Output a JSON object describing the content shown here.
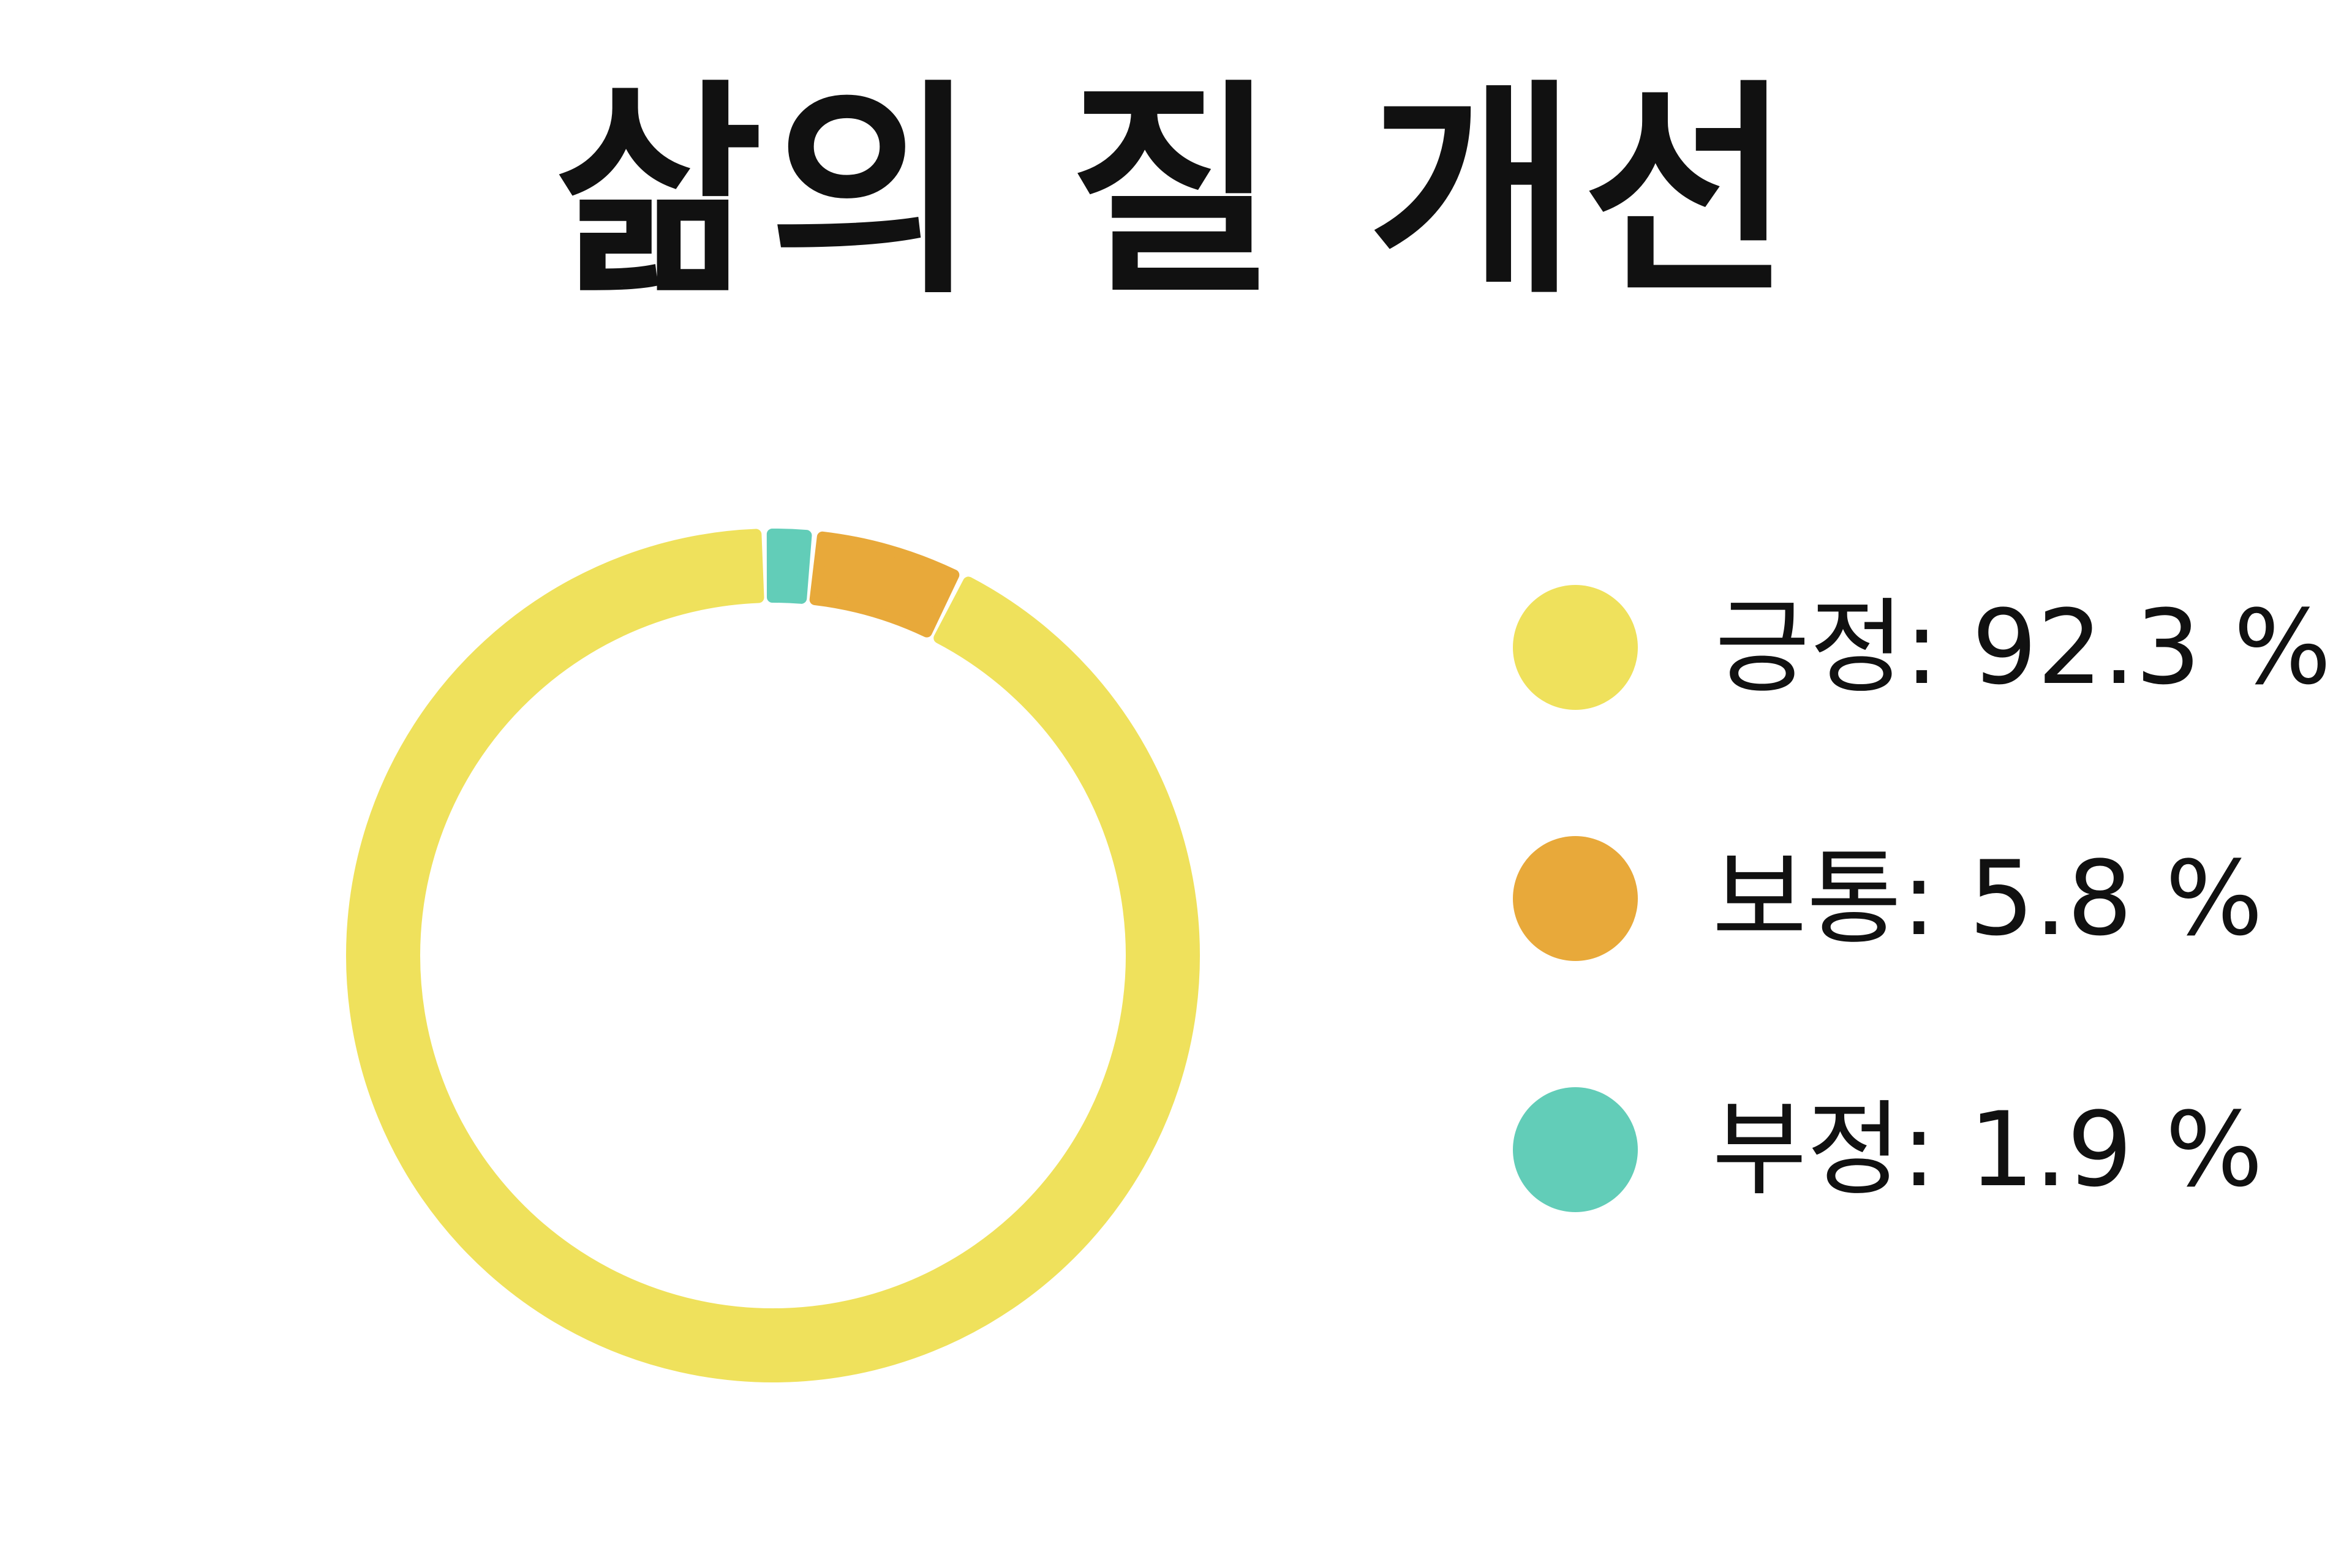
{
  "title": "삶의 질 개선",
  "chart_data": {
    "type": "pie",
    "title": "삶의 질 개선",
    "legend_position": "right",
    "series": [
      {
        "name": "긍정",
        "value": 92.3,
        "color": "#EFE15C",
        "legend_label": "긍정: 92.3 %"
      },
      {
        "name": "보통",
        "value": 5.8,
        "color": "#E8A93A",
        "legend_label": "보통: 5.8 %"
      },
      {
        "name": "부정",
        "value": 1.9,
        "color": "#62CDB8",
        "legend_label": "부정: 1.9 %"
      }
    ]
  }
}
